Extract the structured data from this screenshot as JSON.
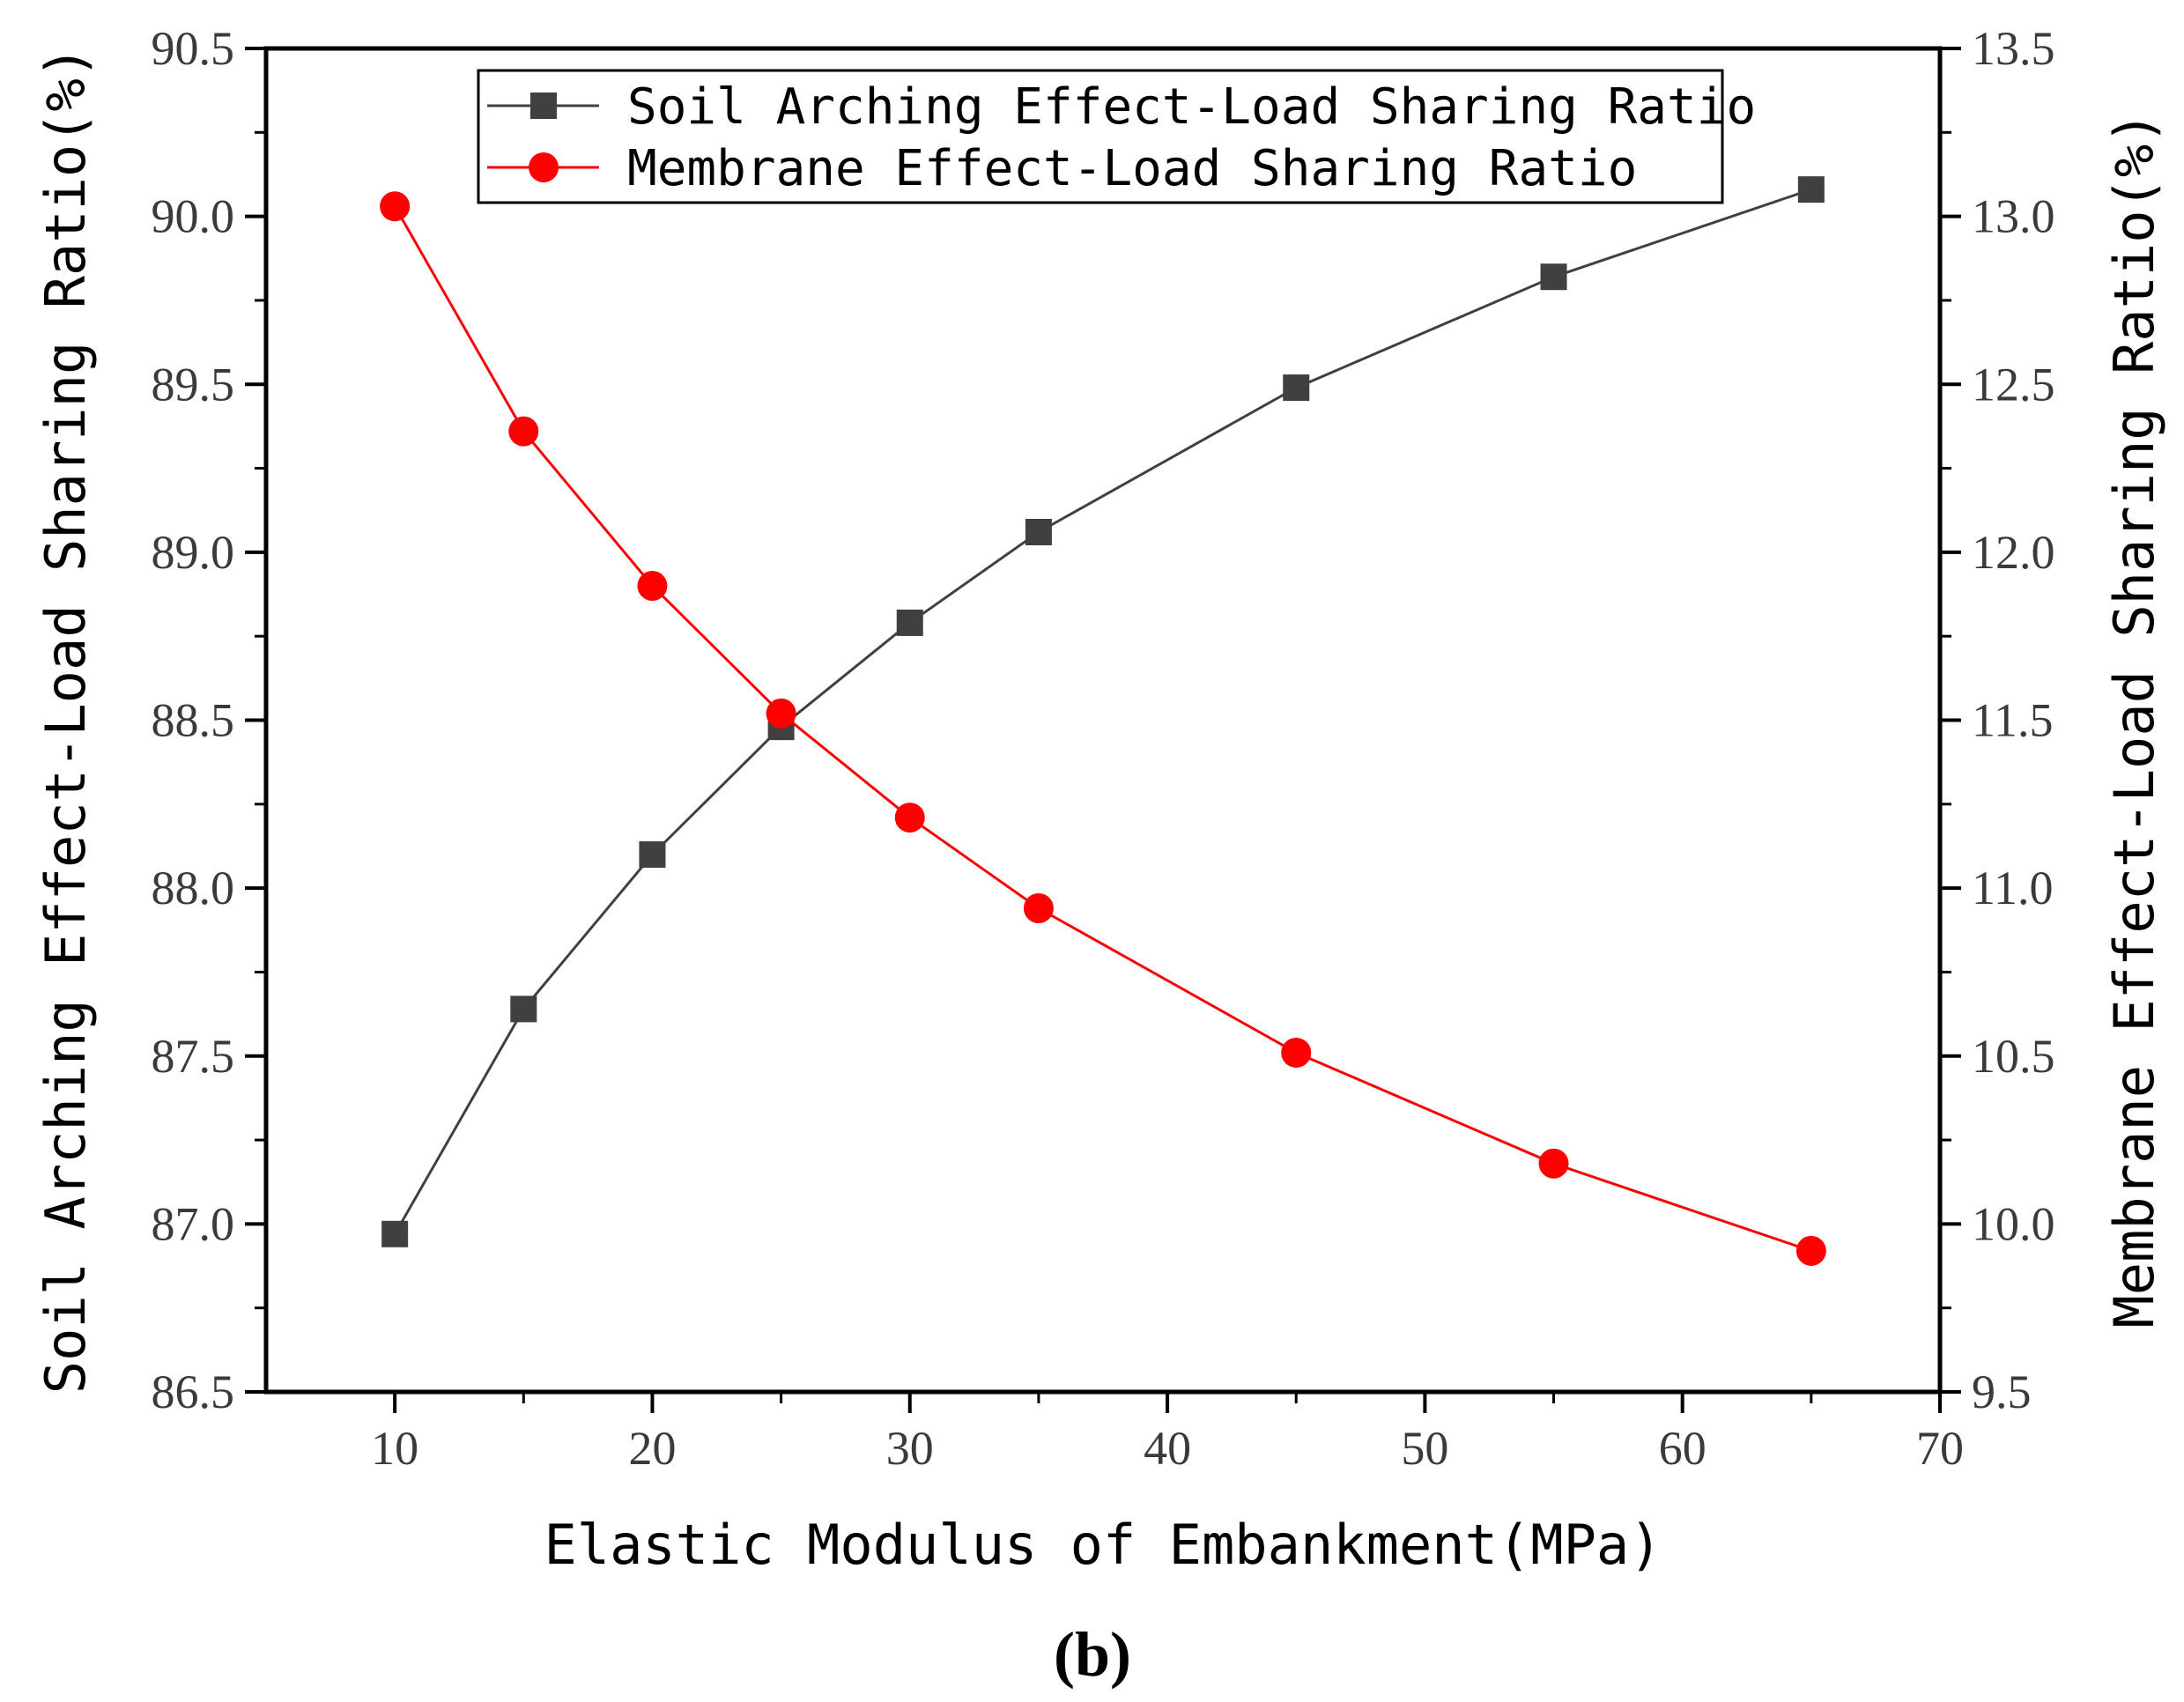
{
  "chart_data": {
    "type": "line",
    "caption": "(b)",
    "xlabel": "Elastic Modulus of Embankment(MPa)",
    "ylabel_left": "Soil Arching Effect-Load Sharing Ratio(%)",
    "ylabel_right": "Membrane Effect-Load Sharing Ratio(%)",
    "xlim": [
      5,
      70
    ],
    "ylim_left": [
      86.5,
      90.5
    ],
    "ylim_right": [
      9.5,
      13.5
    ],
    "xticks": [
      10,
      20,
      30,
      40,
      50,
      60,
      70
    ],
    "yticks_left": [
      "86.5",
      "87.0",
      "87.5",
      "88.0",
      "88.5",
      "89.0",
      "89.5",
      "90.0",
      "90.5"
    ],
    "yticks_right": [
      "9.5",
      "10.0",
      "10.5",
      "11.0",
      "11.5",
      "12.0",
      "12.5",
      "13.0",
      "13.5"
    ],
    "legend_position": "top-center",
    "grid": false,
    "series": [
      {
        "name": "Soil Arching Effect-Load Sharing Ratio",
        "axis": "left",
        "marker": "square",
        "color": "#404040",
        "x": [
          10,
          15,
          20,
          25,
          30,
          35,
          45,
          55,
          65
        ],
        "values": [
          86.97,
          87.64,
          88.1,
          88.48,
          88.79,
          89.06,
          89.49,
          89.82,
          90.08
        ]
      },
      {
        "name": "Membrane Effect-Load Sharing Ratio",
        "axis": "right",
        "marker": "circle",
        "color": "#ff0000",
        "x": [
          10,
          15,
          20,
          25,
          30,
          35,
          45,
          55,
          65
        ],
        "values": [
          13.03,
          12.36,
          11.9,
          11.52,
          11.21,
          10.94,
          10.51,
          10.18,
          9.92
        ]
      }
    ]
  }
}
